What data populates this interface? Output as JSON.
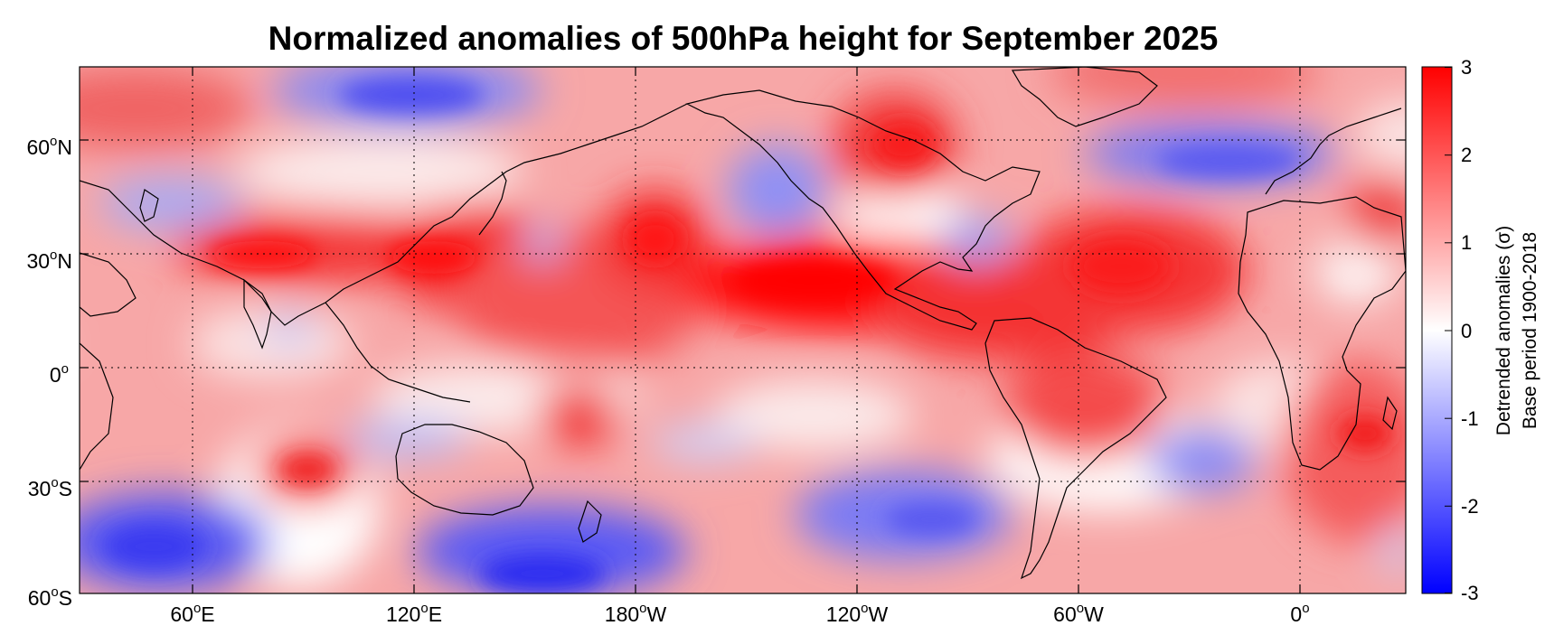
{
  "title": "Normalized anomalies of 500hPa height for September 2025",
  "map": {
    "longitude_labels": [
      {
        "base": "60",
        "deg": "o",
        "hemi": "E"
      },
      {
        "base": "120",
        "deg": "o",
        "hemi": "E"
      },
      {
        "base": "180",
        "deg": "o",
        "hemi": "W"
      },
      {
        "base": "120",
        "deg": "o",
        "hemi": "W"
      },
      {
        "base": "60",
        "deg": "o",
        "hemi": "W"
      },
      {
        "base": "0",
        "deg": "o",
        "hemi": ""
      }
    ],
    "latitude_labels": [
      {
        "base": "60",
        "deg": "o",
        "hemi": "N"
      },
      {
        "base": "30",
        "deg": "o",
        "hemi": "N"
      },
      {
        "base": "0",
        "deg": "o",
        "hemi": ""
      },
      {
        "base": "30",
        "deg": "o",
        "hemi": "S"
      },
      {
        "base": "60",
        "deg": "o",
        "hemi": "S"
      }
    ],
    "anomaly_regions": [
      {
        "name": "siberia-arctic-low",
        "value": -2.2
      },
      {
        "name": "north-atlantic-europe-low",
        "value": -2.0
      },
      {
        "name": "southern-indian-ocean-low",
        "value": -2.4
      },
      {
        "name": "south-pacific-low",
        "value": -2.6
      },
      {
        "name": "southeast-pacific-low",
        "value": -1.9
      },
      {
        "name": "south-atlantic-low",
        "value": -1.6
      },
      {
        "name": "subtropical-asia-high",
        "value": 2.5
      },
      {
        "name": "east-pacific-subtropical-high",
        "value": 2.8
      },
      {
        "name": "hudson-bay-high",
        "value": 2.2
      },
      {
        "name": "tropical-atlantic-high",
        "value": 2.3
      },
      {
        "name": "southern-africa-high",
        "value": 2.4
      }
    ]
  },
  "colorbar": {
    "ticks": [
      "3",
      "2",
      "1",
      "0",
      "-1",
      "-2",
      "-3"
    ],
    "min": -3,
    "max": 3,
    "title_line1": "Detrended anomalies (σ)",
    "title_line2": "Base period 1900-2018",
    "colors": {
      "high": "#ff0000",
      "mid": "#ffffff",
      "low": "#0000ff"
    }
  }
}
